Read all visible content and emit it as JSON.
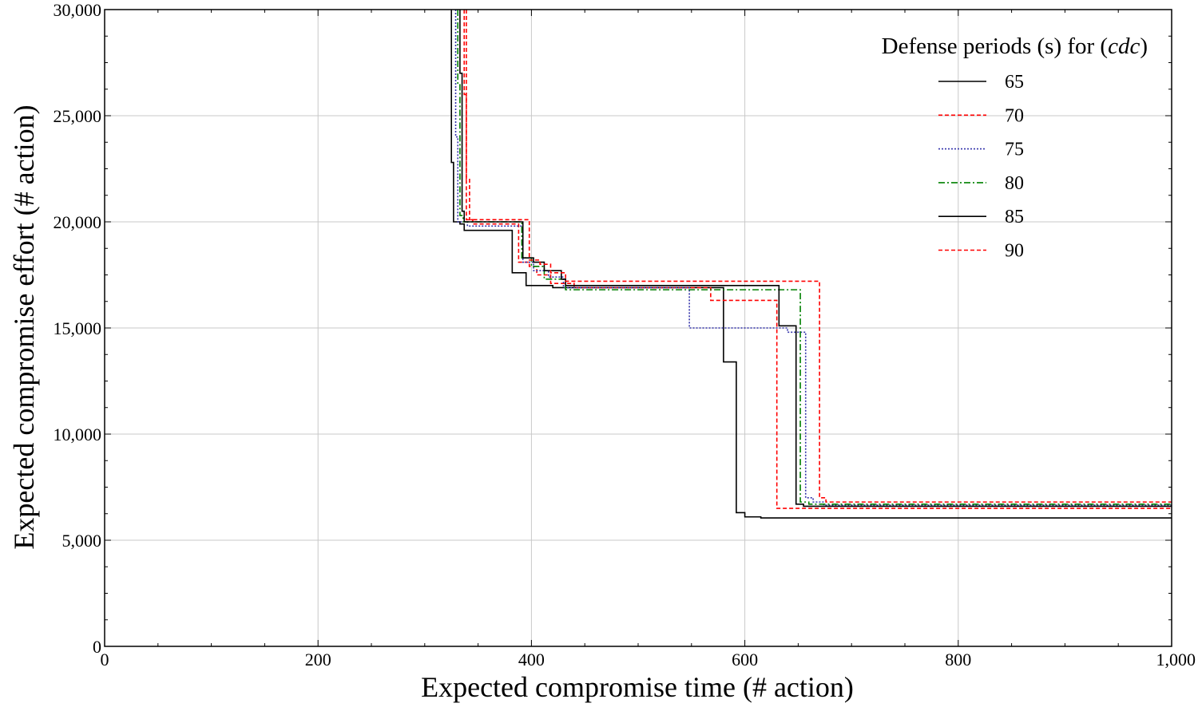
{
  "chart_data": {
    "type": "line",
    "title": "",
    "xlabel": "Expected compromise time (# action)",
    "ylabel": "Expected compromise effort (# action)",
    "xlim": [
      0,
      1000
    ],
    "ylim": [
      0,
      30000
    ],
    "x_ticks": [
      0,
      200,
      400,
      600,
      800,
      1000
    ],
    "x_tick_labels": [
      "0",
      "200",
      "400",
      "600",
      "800",
      "1,000"
    ],
    "y_ticks": [
      0,
      5000,
      10000,
      15000,
      20000,
      25000,
      30000
    ],
    "y_tick_labels": [
      "0",
      "5,000",
      "10,000",
      "15,000",
      "20,000",
      "25,000",
      "30,000"
    ],
    "grid": true,
    "legend": {
      "title": "Defense periods (s) for (cdc)",
      "title_prefix": "Defense periods (s) for (",
      "title_italic": "cdc",
      "title_suffix": ")",
      "placement": "top-right"
    },
    "series": [
      {
        "name": "65",
        "color": "#000000",
        "dash": "solid",
        "points": [
          [
            325,
            30000
          ],
          [
            325,
            22800
          ],
          [
            327,
            22800
          ],
          [
            327,
            20000
          ],
          [
            333,
            20000
          ],
          [
            333,
            19900
          ],
          [
            337,
            19900
          ],
          [
            337,
            19600
          ],
          [
            382,
            19600
          ],
          [
            382,
            17600
          ],
          [
            395,
            17600
          ],
          [
            395,
            17000
          ],
          [
            420,
            17000
          ],
          [
            420,
            16900
          ],
          [
            580,
            16900
          ],
          [
            580,
            13400
          ],
          [
            592,
            13400
          ],
          [
            592,
            6300
          ],
          [
            600,
            6300
          ],
          [
            600,
            6100
          ],
          [
            615,
            6100
          ],
          [
            615,
            6050
          ],
          [
            1000,
            6050
          ]
        ]
      },
      {
        "name": "70",
        "color": "#ff0000",
        "dash": "5,3",
        "points": [
          [
            337,
            30000
          ],
          [
            337,
            26000
          ],
          [
            339,
            26000
          ],
          [
            339,
            20100
          ],
          [
            345,
            20100
          ],
          [
            345,
            19900
          ],
          [
            388,
            19900
          ],
          [
            388,
            18100
          ],
          [
            398,
            18100
          ],
          [
            398,
            17900
          ],
          [
            405,
            17900
          ],
          [
            405,
            17500
          ],
          [
            418,
            17500
          ],
          [
            418,
            17100
          ],
          [
            440,
            17100
          ],
          [
            440,
            16900
          ],
          [
            568,
            16900
          ],
          [
            568,
            16300
          ],
          [
            600,
            16300
          ],
          [
            600,
            16300
          ],
          [
            630,
            16300
          ],
          [
            630,
            6500
          ],
          [
            1000,
            6500
          ]
        ]
      },
      {
        "name": "75",
        "color": "#3333aa",
        "dash": "2,2",
        "points": [
          [
            329,
            30000
          ],
          [
            329,
            24000
          ],
          [
            331,
            24000
          ],
          [
            331,
            20000
          ],
          [
            340,
            20000
          ],
          [
            340,
            19800
          ],
          [
            392,
            19800
          ],
          [
            392,
            18100
          ],
          [
            402,
            18100
          ],
          [
            402,
            17700
          ],
          [
            416,
            17700
          ],
          [
            416,
            17400
          ],
          [
            430,
            17400
          ],
          [
            430,
            16900
          ],
          [
            548,
            16900
          ],
          [
            548,
            15000
          ],
          [
            640,
            15000
          ],
          [
            640,
            14800
          ],
          [
            657,
            14800
          ],
          [
            657,
            7000
          ],
          [
            664,
            7000
          ],
          [
            664,
            6800
          ],
          [
            674,
            6800
          ],
          [
            674,
            6650
          ],
          [
            1000,
            6650
          ]
        ]
      },
      {
        "name": "80",
        "color": "#008000",
        "dash": "8,3,2,3",
        "points": [
          [
            331,
            30000
          ],
          [
            331,
            26500
          ],
          [
            333,
            26500
          ],
          [
            333,
            20300
          ],
          [
            336,
            20300
          ],
          [
            336,
            20000
          ],
          [
            391,
            20000
          ],
          [
            391,
            18300
          ],
          [
            400,
            18300
          ],
          [
            400,
            17900
          ],
          [
            412,
            17900
          ],
          [
            412,
            17300
          ],
          [
            432,
            17300
          ],
          [
            432,
            16800
          ],
          [
            652,
            16800
          ],
          [
            652,
            6800
          ],
          [
            660,
            6800
          ],
          [
            660,
            6700
          ],
          [
            1000,
            6700
          ]
        ]
      },
      {
        "name": "85",
        "color": "#000000",
        "dash": "solid",
        "points": [
          [
            333,
            30000
          ],
          [
            333,
            27000
          ],
          [
            335,
            27000
          ],
          [
            335,
            20500
          ],
          [
            337,
            20500
          ],
          [
            337,
            20000
          ],
          [
            392,
            20000
          ],
          [
            392,
            18300
          ],
          [
            402,
            18300
          ],
          [
            402,
            18100
          ],
          [
            412,
            18100
          ],
          [
            412,
            17700
          ],
          [
            428,
            17700
          ],
          [
            428,
            17300
          ],
          [
            432,
            17300
          ],
          [
            432,
            17000
          ],
          [
            632,
            17000
          ],
          [
            632,
            15100
          ],
          [
            648,
            15100
          ],
          [
            648,
            6700
          ],
          [
            655,
            6700
          ],
          [
            655,
            6600
          ],
          [
            1000,
            6600
          ]
        ]
      },
      {
        "name": "90",
        "color": "#ff0000",
        "dash": "5,3",
        "points": [
          [
            339,
            30000
          ],
          [
            339,
            22000
          ],
          [
            342,
            22000
          ],
          [
            342,
            20100
          ],
          [
            398,
            20100
          ],
          [
            398,
            18200
          ],
          [
            408,
            18200
          ],
          [
            408,
            18000
          ],
          [
            418,
            18000
          ],
          [
            418,
            17600
          ],
          [
            432,
            17600
          ],
          [
            432,
            17200
          ],
          [
            670,
            17200
          ],
          [
            670,
            7000
          ],
          [
            676,
            7000
          ],
          [
            676,
            6800
          ],
          [
            1000,
            6800
          ]
        ]
      }
    ]
  }
}
